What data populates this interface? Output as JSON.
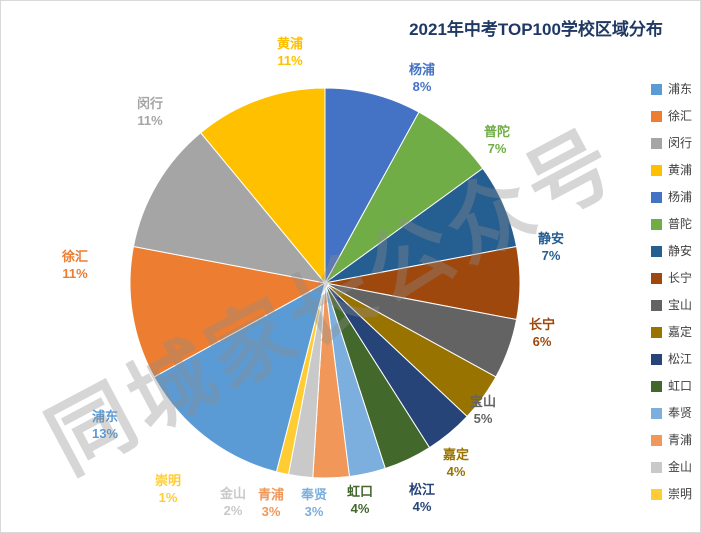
{
  "header": {
    "title": "2021年中考TOP100学校区域分布"
  },
  "watermark": {
    "text": "同城家长公众号"
  },
  "chart_data": {
    "type": "pie",
    "title": "2021年中考TOP100学校区域分布",
    "unit": "%",
    "direction": "clockwise",
    "start_angle_deg": 194.4,
    "legend_position": "right",
    "categories": [
      "浦东",
      "徐汇",
      "闵行",
      "黄浦",
      "杨浦",
      "普陀",
      "静安",
      "长宁",
      "宝山",
      "嘉定",
      "松江",
      "虹口",
      "奉贤",
      "青浦",
      "金山",
      "崇明"
    ],
    "values": [
      13,
      11,
      11,
      11,
      8,
      7,
      7,
      6,
      5,
      4,
      4,
      4,
      3,
      3,
      2,
      1
    ],
    "slices": [
      {
        "name": "浦东",
        "value": 13,
        "label": "13%",
        "color": "#5B9BD5"
      },
      {
        "name": "徐汇",
        "value": 11,
        "label": "11%",
        "color": "#ED7D31"
      },
      {
        "name": "闵行",
        "value": 11,
        "label": "11%",
        "color": "#A5A5A5"
      },
      {
        "name": "黄浦",
        "value": 11,
        "label": "11%",
        "color": "#FFC000"
      },
      {
        "name": "杨浦",
        "value": 8,
        "label": "8%",
        "color": "#4472C4"
      },
      {
        "name": "普陀",
        "value": 7,
        "label": "7%",
        "color": "#70AD47"
      },
      {
        "name": "静安",
        "value": 7,
        "label": "7%",
        "color": "#255E91"
      },
      {
        "name": "长宁",
        "value": 6,
        "label": "6%",
        "color": "#9E480E"
      },
      {
        "name": "宝山",
        "value": 5,
        "label": "5%",
        "color": "#636363"
      },
      {
        "name": "嘉定",
        "value": 4,
        "label": "4%",
        "color": "#997300"
      },
      {
        "name": "松江",
        "value": 4,
        "label": "4%",
        "color": "#264478"
      },
      {
        "name": "虹口",
        "value": 4,
        "label": "4%",
        "color": "#43682B"
      },
      {
        "name": "奉贤",
        "value": 3,
        "label": "3%",
        "color": "#7CAFDD"
      },
      {
        "name": "青浦",
        "value": 3,
        "label": "3%",
        "color": "#F1975A"
      },
      {
        "name": "金山",
        "value": 2,
        "label": "2%",
        "color": "#C9C9C9"
      },
      {
        "name": "崇明",
        "value": 1,
        "label": "1%",
        "color": "#FFCD33"
      }
    ]
  }
}
